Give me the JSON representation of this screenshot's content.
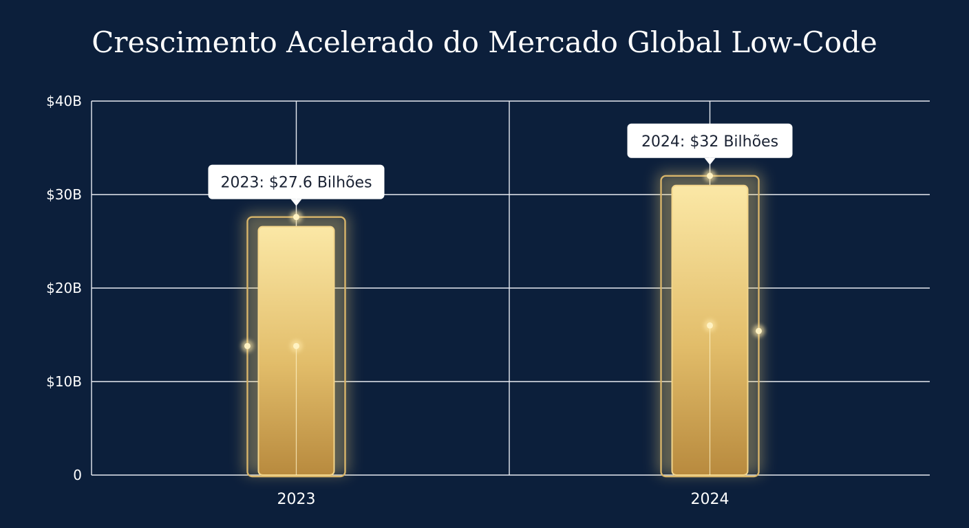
{
  "chart_data": {
    "type": "bar",
    "title": "Crescimento Acelerado do Mercado Global Low-Code",
    "xlabel": "",
    "ylabel": "",
    "categories": [
      "2023",
      "2024"
    ],
    "values": [
      27.6,
      32
    ],
    "ylim": [
      0,
      40
    ],
    "yticks": [
      0,
      10,
      20,
      30,
      40
    ],
    "ytick_labels": [
      "0",
      "$10B",
      "$20B",
      "$30B",
      "$40B"
    ],
    "data_labels": [
      "2023: $27.6 Bilhões",
      "2024: $32 Bilhões"
    ],
    "grid": true,
    "legend": "none",
    "colors": {
      "background": "#0c1f3b",
      "grid": "#e8ecf2",
      "bar_top": "#fbe6a0",
      "bar_bottom": "#b8893c",
      "bar_outline": "#d8b56a",
      "callout_bg": "#ffffff",
      "callout_text": "#1a2233"
    }
  }
}
